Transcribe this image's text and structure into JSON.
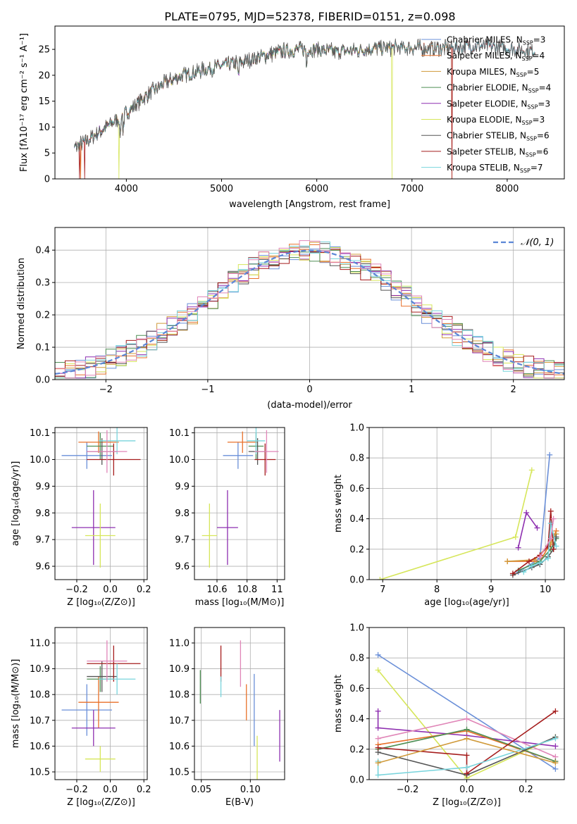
{
  "title": "PLATE=0795, MJD=52378, FIBERID=0151, z=0.098",
  "colors": {
    "Chabrier MILES": "#6a8fd8",
    "Salpeter MILES": "#e8712a",
    "Kroupa MILES": "#d09a3a",
    "Chabrier ELODIE": "#4f8f55",
    "Salpeter ELODIE": "#8e2fb0",
    "Kroupa ELODIE": "#d6e65a",
    "Chabrier STELIB": "#555555",
    "Salpeter STELIB": "#a51c1c",
    "Kroupa STELIB": "#78d4dc",
    "pink": "#e086b8",
    "normal_line": "#5b86d6"
  },
  "spectrum": {
    "ylabel": "Flux [fλ10⁻¹⁷ erg cm⁻² s⁻¹ A⁻¹]",
    "xlabel": "wavelength [Angstrom, rest frame]",
    "xlim": [
      3250,
      8600
    ],
    "ylim": [
      0,
      29.5
    ],
    "xticks": [
      4000,
      5000,
      6000,
      7000,
      8000
    ],
    "yticks": [
      0,
      5,
      10,
      15,
      20,
      25
    ],
    "legend": [
      {
        "name": "Chabrier MILES, N",
        "sub": "SSP",
        "tail": "=3",
        "color": "Chabrier MILES"
      },
      {
        "name": "Salpeter MILES, N",
        "sub": "SSP",
        "tail": "=4",
        "color": "Salpeter MILES"
      },
      {
        "name": "Kroupa MILES, N",
        "sub": "SSP",
        "tail": "=5",
        "color": "Kroupa MILES"
      },
      {
        "name": "Chabrier ELODIE, N",
        "sub": "SSP",
        "tail": "=4",
        "color": "Chabrier ELODIE"
      },
      {
        "name": "Salpeter ELODIE, N",
        "sub": "SSP",
        "tail": "=3",
        "color": "Salpeter ELODIE"
      },
      {
        "name": "Kroupa ELODIE, N",
        "sub": "SSP",
        "tail": "=3",
        "color": "Kroupa ELODIE"
      },
      {
        "name": "Chabrier STELIB, N",
        "sub": "SSP",
        "tail": "=6",
        "color": "Chabrier STELIB"
      },
      {
        "name": "Salpeter STELIB, N",
        "sub": "SSP",
        "tail": "=6",
        "color": "Salpeter STELIB"
      },
      {
        "name": "Kroupa STELIB, N",
        "sub": "SSP",
        "tail": "=7",
        "color": "Kroupa STELIB"
      }
    ]
  },
  "chart_data": [
    {
      "type": "line",
      "title": "PLATE=0795, MJD=52378, FIBERID=0151, z=0.098",
      "xlabel": "wavelength [Angstrom, rest frame]",
      "ylabel": "Flux [fλ10⁻¹⁷ erg cm⁻² s⁻¹ A⁻¹]",
      "xlim": [
        3250,
        8600
      ],
      "ylim": [
        0,
        29.5
      ],
      "continuum": {
        "x": [
          3450,
          3600,
          3750,
          3900,
          4050,
          4200,
          4400,
          4600,
          4800,
          5000,
          5200,
          5400,
          5600,
          5800,
          6000,
          6200,
          6400,
          6600,
          6800,
          7000,
          7200,
          7400,
          7600,
          7800,
          8000,
          8200,
          8400
        ],
        "y": [
          6,
          7.5,
          9.5,
          11.5,
          13.5,
          16,
          18.5,
          20,
          21,
          21.8,
          22.5,
          23.5,
          24.5,
          25,
          25,
          24.5,
          24.8,
          25.2,
          25.3,
          25.3,
          25.2,
          25.3,
          25.6,
          25.6,
          25.2,
          24.8,
          24.5
        ]
      },
      "series": [
        {
          "name": "Chabrier MILES, NSSP=3",
          "xrange": [
            3450,
            8150
          ]
        },
        {
          "name": "Salpeter MILES, NSSP=4",
          "xrange": [
            3450,
            7420
          ],
          "dropouts": [
            3520,
            7420
          ]
        },
        {
          "name": "Kroupa MILES, NSSP=5",
          "xrange": [
            3450,
            7400
          ]
        },
        {
          "name": "Chabrier ELODIE, NSSP=4",
          "xrange": [
            3450,
            6800
          ]
        },
        {
          "name": "Salpeter ELODIE, NSSP=3",
          "xrange": [
            3450,
            6800
          ]
        },
        {
          "name": "Kroupa ELODIE, NSSP=3",
          "xrange": [
            3450,
            6800
          ],
          "dropouts": [
            3920,
            6790
          ]
        },
        {
          "name": "Chabrier STELIB, NSSP=6",
          "xrange": [
            3450,
            8300
          ]
        },
        {
          "name": "Salpeter STELIB, NSSP=6",
          "xrange": [
            3450,
            8300
          ],
          "dropouts": [
            3510,
            3560,
            7420
          ]
        },
        {
          "name": "Kroupa STELIB, NSSP=7",
          "xrange": [
            3450,
            8300
          ]
        }
      ]
    },
    {
      "type": "histogram",
      "xlabel": "(data-model)/error",
      "ylabel": "Normed distribution",
      "xlim": [
        -2.5,
        2.5
      ],
      "ylim": [
        0,
        0.47
      ],
      "xticks": [
        -2,
        -1,
        0,
        1,
        2
      ],
      "yticks": [
        0.0,
        0.1,
        0.2,
        0.3,
        0.4
      ],
      "bin_width": 0.1,
      "legend": [
        {
          "name": "𝒩(0, 1)",
          "style": "dashed"
        }
      ],
      "normal_curve": {
        "mean": 0,
        "sigma": 1,
        "name": "𝒩(0, 1)"
      }
    },
    {
      "type": "errorbar",
      "xlabel": "Z [log₁₀(Z/Z⊙)]",
      "ylabel": "age  [log₁₀(age/yr)]",
      "xlim": [
        -0.33,
        0.22
      ],
      "ylim": [
        9.55,
        10.12
      ],
      "xticks": [
        -0.2,
        0.0,
        0.2
      ],
      "yticks": [
        9.6,
        9.7,
        9.8,
        9.9,
        10.0,
        10.1
      ],
      "points": [
        {
          "c": "Chabrier MILES",
          "x": -0.14,
          "xerr": 0.15,
          "y": 10.015,
          "yerr": 0.05
        },
        {
          "c": "Salpeter MILES",
          "x": -0.07,
          "xerr": 0.12,
          "y": 10.065,
          "yerr": 0.04
        },
        {
          "c": "Chabrier ELODIE",
          "x": -0.06,
          "xerr": 0.08,
          "y": 10.05,
          "yerr": 0.05
        },
        {
          "c": "Salpeter ELODIE",
          "x": -0.1,
          "xerr": 0.13,
          "y": 9.745,
          "yerr": 0.14
        },
        {
          "c": "Kroupa ELODIE",
          "x": -0.06,
          "xerr": 0.09,
          "y": 9.715,
          "yerr": 0.12
        },
        {
          "c": "Chabrier STELIB",
          "x": -0.05,
          "xerr": 0.09,
          "y": 10.03,
          "yerr": 0.05
        },
        {
          "c": "Salpeter STELIB",
          "x": 0.02,
          "xerr": 0.16,
          "y": 10.0,
          "yerr": 0.06
        },
        {
          "c": "Kroupa STELIB",
          "x": 0.04,
          "xerr": 0.11,
          "y": 10.07,
          "yerr": 0.05
        },
        {
          "c": "pink",
          "x": -0.02,
          "xerr": 0.12,
          "y": 10.03,
          "yerr": 0.08
        }
      ]
    },
    {
      "type": "errorbar",
      "xlabel": "mass [log₁₀(M/M⊙)]",
      "xlim": [
        10.45,
        11.05
      ],
      "ylim": [
        9.55,
        10.12
      ],
      "xticks": [
        10.6,
        10.8,
        11.0
      ],
      "yticks": [
        9.6,
        9.7,
        9.8,
        9.9,
        10.0,
        10.1
      ],
      "points": [
        {
          "c": "Chabrier MILES",
          "x": 10.74,
          "xerr": 0.1,
          "y": 10.015,
          "yerr": 0.05
        },
        {
          "c": "Salpeter MILES",
          "x": 10.77,
          "xerr": 0.1,
          "y": 10.065,
          "yerr": 0.04
        },
        {
          "c": "Chabrier ELODIE",
          "x": 10.86,
          "xerr": 0.05,
          "y": 10.05,
          "yerr": 0.05
        },
        {
          "c": "Salpeter ELODIE",
          "x": 10.67,
          "xerr": 0.07,
          "y": 9.745,
          "yerr": 0.14
        },
        {
          "c": "Kroupa ELODIE",
          "x": 10.55,
          "xerr": 0.05,
          "y": 9.715,
          "yerr": 0.12
        },
        {
          "c": "Chabrier STELIB",
          "x": 10.87,
          "xerr": 0.06,
          "y": 10.03,
          "yerr": 0.05
        },
        {
          "c": "Salpeter STELIB",
          "x": 10.92,
          "xerr": 0.07,
          "y": 10.0,
          "yerr": 0.06
        },
        {
          "c": "Kroupa STELIB",
          "x": 10.86,
          "xerr": 0.06,
          "y": 10.07,
          "yerr": 0.05
        },
        {
          "c": "pink",
          "x": 10.93,
          "xerr": 0.08,
          "y": 10.03,
          "yerr": 0.08
        }
      ]
    },
    {
      "type": "line",
      "xlabel": "age  [log₁₀(age/yr)]",
      "ylabel": "mass weight",
      "xlim": [
        6.75,
        10.35
      ],
      "ylim": [
        0,
        1
      ],
      "xticks": [
        7,
        8,
        9,
        10
      ],
      "yticks": [
        0.0,
        0.2,
        0.4,
        0.6,
        0.8,
        1.0
      ],
      "series": [
        {
          "c": "Chabrier MILES",
          "x": [
            9.5,
            9.9,
            10.08
          ],
          "y": [
            0.05,
            0.14,
            0.82
          ]
        },
        {
          "c": "Salpeter MILES",
          "x": [
            9.3,
            9.9,
            10.08,
            10.2
          ],
          "y": [
            0.12,
            0.12,
            0.23,
            0.32
          ]
        },
        {
          "c": "Kroupa MILES",
          "x": [
            9.3,
            9.8,
            10.1,
            10.2
          ],
          "y": [
            0.12,
            0.13,
            0.24,
            0.3
          ]
        },
        {
          "c": "Chabrier ELODIE",
          "x": [
            9.5,
            9.9,
            10.1,
            10.2
          ],
          "y": [
            0.06,
            0.12,
            0.2,
            0.27
          ]
        },
        {
          "c": "Salpeter ELODIE",
          "x": [
            9.5,
            9.65,
            9.85
          ],
          "y": [
            0.21,
            0.44,
            0.34
          ]
        },
        {
          "c": "Kroupa ELODIE",
          "x": [
            6.95,
            9.45,
            9.75
          ],
          "y": [
            0.0,
            0.28,
            0.72
          ]
        },
        {
          "c": "Chabrier STELIB",
          "x": [
            9.4,
            9.75,
            9.9,
            10.05,
            10.15,
            10.2
          ],
          "y": [
            0.03,
            0.08,
            0.1,
            0.15,
            0.2,
            0.28
          ]
        },
        {
          "c": "Salpeter STELIB",
          "x": [
            9.4,
            9.7,
            9.9,
            10.05,
            10.1,
            10.15
          ],
          "y": [
            0.04,
            0.12,
            0.16,
            0.22,
            0.45,
            0.2
          ]
        },
        {
          "c": "Kroupa STELIB",
          "x": [
            9.6,
            9.75,
            9.9,
            10.05,
            10.1,
            10.2
          ],
          "y": [
            0.05,
            0.09,
            0.11,
            0.14,
            0.37,
            0.22
          ]
        },
        {
          "c": "pink",
          "x": [
            9.9,
            10.1,
            10.15
          ],
          "y": [
            0.15,
            0.27,
            0.4
          ]
        }
      ]
    },
    {
      "type": "errorbar",
      "xlabel": "Z [log₁₀(Z/Z⊙)]",
      "ylabel": "mass [log₁₀(M/M⊙)]",
      "xlim": [
        -0.33,
        0.22
      ],
      "ylim": [
        10.47,
        11.06
      ],
      "xticks": [
        -0.2,
        0.0,
        0.2
      ],
      "yticks": [
        10.5,
        10.6,
        10.7,
        10.8,
        10.9,
        11.0
      ],
      "points": [
        {
          "c": "Chabrier MILES",
          "x": -0.14,
          "xerr": 0.15,
          "y": 10.74,
          "yerr": 0.1
        },
        {
          "c": "Salpeter MILES",
          "x": -0.07,
          "xerr": 0.12,
          "y": 10.77,
          "yerr": 0.1
        },
        {
          "c": "Chabrier ELODIE",
          "x": -0.06,
          "xerr": 0.08,
          "y": 10.86,
          "yerr": 0.05
        },
        {
          "c": "Salpeter ELODIE",
          "x": -0.1,
          "xerr": 0.13,
          "y": 10.67,
          "yerr": 0.07
        },
        {
          "c": "Kroupa ELODIE",
          "x": -0.06,
          "xerr": 0.09,
          "y": 10.55,
          "yerr": 0.05
        },
        {
          "c": "Chabrier STELIB",
          "x": -0.05,
          "xerr": 0.09,
          "y": 10.87,
          "yerr": 0.06
        },
        {
          "c": "Salpeter STELIB",
          "x": 0.02,
          "xerr": 0.16,
          "y": 10.92,
          "yerr": 0.07
        },
        {
          "c": "Kroupa STELIB",
          "x": 0.04,
          "xerr": 0.11,
          "y": 10.86,
          "yerr": 0.06
        },
        {
          "c": "pink",
          "x": -0.02,
          "xerr": 0.12,
          "y": 10.93,
          "yerr": 0.08
        }
      ]
    },
    {
      "type": "errorbar",
      "xlabel": "E(B-V)",
      "xlim": [
        0.043,
        0.135
      ],
      "ylim": [
        10.47,
        11.06
      ],
      "xticks": [
        0.05,
        0.1
      ],
      "yticks": [
        10.5,
        10.6,
        10.7,
        10.8,
        10.9,
        11.0
      ],
      "points": [
        {
          "c": "Chabrier ELODIE",
          "x": 0.049,
          "y": 10.83,
          "yerr": 0.065
        },
        {
          "c": "Salpeter STELIB",
          "x": 0.07,
          "y": 10.92,
          "yerr": 0.07
        },
        {
          "c": "Kroupa STELIB",
          "x": 0.07,
          "y": 10.83,
          "yerr": 0.04
        },
        {
          "c": "pink",
          "x": 0.09,
          "y": 10.92,
          "yerr": 0.09
        },
        {
          "c": "Salpeter MILES",
          "x": 0.096,
          "y": 10.77,
          "yerr": 0.07
        },
        {
          "c": "Chabrier MILES",
          "x": 0.104,
          "y": 10.74,
          "yerr": 0.14
        },
        {
          "c": "Kroupa ELODIE",
          "x": 0.107,
          "y": 10.55,
          "yerr": 0.09
        },
        {
          "c": "Salpeter ELODIE",
          "x": 0.13,
          "y": 10.64,
          "yerr": 0.1
        }
      ]
    },
    {
      "type": "line",
      "xlabel": "Z [log₁₀(Z/Z⊙)]",
      "ylabel": "mass weight",
      "xlim": [
        -0.33,
        0.33
      ],
      "ylim": [
        0,
        1
      ],
      "xticks": [
        -0.2,
        0.0,
        0.2
      ],
      "yticks": [
        0.0,
        0.2,
        0.4,
        0.6,
        0.8,
        1.0
      ],
      "series": [
        {
          "c": "Chabrier MILES",
          "x": [
            -0.3,
            0.3
          ],
          "y": [
            0.82,
            0.07
          ]
        },
        {
          "c": "Kroupa ELODIE",
          "x": [
            -0.3,
            0.0,
            0.3
          ],
          "y": [
            0.72,
            0.01,
            0.28
          ]
        },
        {
          "c": "Salpeter ELODIE",
          "x": [
            -0.3,
            -0.3,
            0.0,
            0.3
          ],
          "y": [
            0.45,
            0.34,
            0.29,
            0.22
          ]
        },
        {
          "c": "pink",
          "x": [
            -0.3,
            0.0,
            0.3
          ],
          "y": [
            0.27,
            0.4,
            0.15
          ]
        },
        {
          "c": "Salpeter MILES",
          "x": [
            -0.3,
            0.0,
            0.3
          ],
          "y": [
            0.23,
            0.32,
            0.12
          ]
        },
        {
          "c": "Chabrier ELODIE",
          "x": [
            -0.3,
            0.0,
            0.3
          ],
          "y": [
            0.2,
            0.33,
            0.12
          ]
        },
        {
          "c": "Chabrier STELIB",
          "x": [
            -0.3,
            0.0,
            0.3
          ],
          "y": [
            0.18,
            0.03,
            0.28
          ]
        },
        {
          "c": "Salpeter STELIB",
          "x": [
            -0.3,
            0.0,
            0.0,
            0.3
          ],
          "y": [
            0.21,
            0.16,
            0.04,
            0.45
          ]
        },
        {
          "c": "Kroupa STELIB",
          "x": [
            -0.3,
            -0.3,
            0.0,
            0.3
          ],
          "y": [
            0.12,
            0.03,
            0.08,
            0.27
          ]
        },
        {
          "c": "Kroupa MILES",
          "x": [
            -0.3,
            0.0,
            0.3
          ],
          "y": [
            0.11,
            0.27,
            0.11
          ]
        }
      ]
    }
  ]
}
